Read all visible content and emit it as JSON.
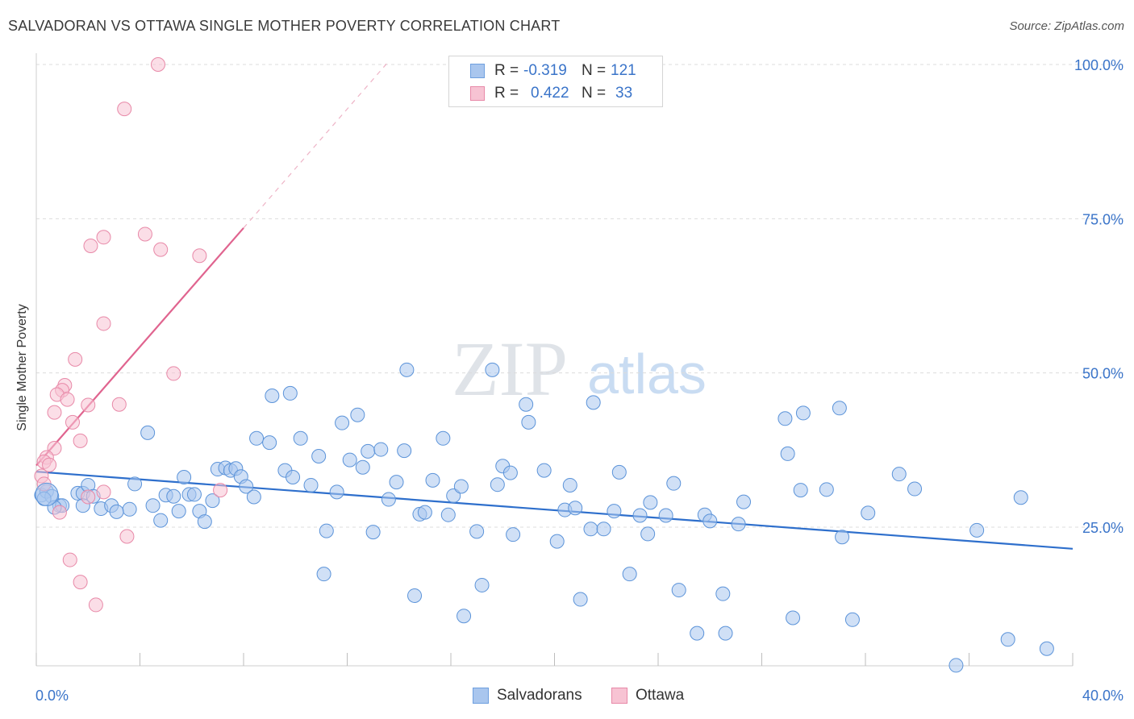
{
  "title": "SALVADORAN VS OTTAWA SINGLE MOTHER POVERTY CORRELATION CHART",
  "source": "Source: ZipAtlas.com",
  "watermark": {
    "zip": "ZIP",
    "atlas": "atlas"
  },
  "legend": {
    "rows": [
      {
        "r_label": "R =",
        "r_value": "-0.319",
        "n_label": "N =",
        "n_value": "121",
        "color": "#a9c6ee",
        "border": "#6e9fdf"
      },
      {
        "r_label": "R =",
        "r_value": "0.422",
        "n_label": "N =",
        "n_value": "33",
        "color": "#f7c3d3",
        "border": "#e889a8"
      }
    ]
  },
  "bottom_legend": [
    {
      "label": "Salvadorans",
      "color": "#a9c6ee",
      "border": "#6e9fdf"
    },
    {
      "label": "Ottawa",
      "color": "#f7c3d3",
      "border": "#e889a8"
    }
  ],
  "chart_data": {
    "type": "scatter",
    "title": "SALVADORAN VS OTTAWA SINGLE MOTHER POVERTY CORRELATION CHART",
    "xlabel": "",
    "ylabel": "Single Mother Poverty",
    "xlim": [
      0,
      40
    ],
    "ylim": [
      0,
      105
    ],
    "x_tick_labels": [
      "0.0%",
      "40.0%"
    ],
    "y_ticks": [
      25,
      50,
      75,
      100
    ],
    "y_tick_labels": [
      "25.0%",
      "50.0%",
      "75.0%",
      "100.0%"
    ],
    "grid": "horizontal dashed",
    "legend_position": "top-center",
    "series": [
      {
        "name": "Salvadorans",
        "color": "#5b93d9",
        "fill": "#a9c6ee",
        "trend": {
          "x": [
            0,
            40
          ],
          "y": [
            34.0,
            21.5
          ],
          "color": "#2e6fcc"
        },
        "points": [
          [
            0.2,
            30.2
          ],
          [
            0.4,
            30.8
          ],
          [
            0.6,
            30.0
          ],
          [
            0.9,
            28.5
          ],
          [
            1.0,
            28.5
          ],
          [
            1.6,
            30.5
          ],
          [
            1.8,
            30.5
          ],
          [
            1.8,
            28.5
          ],
          [
            2.0,
            31.8
          ],
          [
            2.2,
            30.0
          ],
          [
            2.5,
            28.0
          ],
          [
            2.9,
            28.5
          ],
          [
            3.6,
            27.9
          ],
          [
            3.8,
            32.0
          ],
          [
            3.1,
            27.5
          ],
          [
            4.3,
            40.3
          ],
          [
            4.5,
            28.5
          ],
          [
            4.8,
            26.1
          ],
          [
            5.0,
            30.2
          ],
          [
            5.3,
            30.0
          ],
          [
            5.5,
            27.6
          ],
          [
            5.7,
            33.1
          ],
          [
            5.9,
            30.3
          ],
          [
            6.1,
            30.3
          ],
          [
            6.3,
            27.6
          ],
          [
            6.5,
            25.9
          ],
          [
            6.8,
            29.3
          ],
          [
            7.0,
            34.4
          ],
          [
            7.3,
            34.6
          ],
          [
            7.5,
            34.2
          ],
          [
            7.7,
            34.5
          ],
          [
            7.9,
            33.2
          ],
          [
            8.1,
            31.6
          ],
          [
            8.4,
            29.9
          ],
          [
            8.5,
            39.4
          ],
          [
            9.0,
            38.7
          ],
          [
            9.1,
            46.3
          ],
          [
            9.6,
            34.2
          ],
          [
            9.8,
            46.7
          ],
          [
            9.9,
            33.1
          ],
          [
            10.2,
            39.4
          ],
          [
            10.6,
            31.8
          ],
          [
            10.9,
            36.5
          ],
          [
            11.1,
            17.4
          ],
          [
            11.2,
            24.4
          ],
          [
            11.6,
            30.7
          ],
          [
            11.8,
            41.9
          ],
          [
            12.1,
            35.9
          ],
          [
            12.4,
            43.2
          ],
          [
            12.6,
            34.7
          ],
          [
            12.8,
            37.3
          ],
          [
            13.0,
            24.2
          ],
          [
            13.3,
            37.6
          ],
          [
            13.6,
            29.5
          ],
          [
            13.9,
            32.3
          ],
          [
            14.2,
            37.4
          ],
          [
            14.3,
            50.5
          ],
          [
            14.6,
            13.9
          ],
          [
            14.8,
            27.1
          ],
          [
            15.0,
            27.4
          ],
          [
            15.3,
            32.6
          ],
          [
            15.7,
            39.4
          ],
          [
            15.9,
            27.0
          ],
          [
            16.1,
            30.1
          ],
          [
            16.4,
            31.6
          ],
          [
            16.5,
            10.6
          ],
          [
            17.0,
            24.3
          ],
          [
            17.2,
            15.6
          ],
          [
            17.6,
            50.5
          ],
          [
            17.8,
            31.9
          ],
          [
            18.0,
            34.9
          ],
          [
            18.3,
            33.8
          ],
          [
            18.4,
            23.8
          ],
          [
            18.9,
            44.9
          ],
          [
            19.0,
            42.0
          ],
          [
            19.6,
            34.2
          ],
          [
            20.1,
            22.7
          ],
          [
            20.4,
            27.8
          ],
          [
            20.6,
            31.8
          ],
          [
            20.8,
            28.1
          ],
          [
            21.0,
            13.3
          ],
          [
            21.4,
            24.7
          ],
          [
            21.5,
            45.2
          ],
          [
            21.9,
            24.7
          ],
          [
            22.3,
            27.6
          ],
          [
            22.5,
            33.9
          ],
          [
            22.9,
            17.4
          ],
          [
            23.3,
            26.9
          ],
          [
            23.6,
            23.9
          ],
          [
            23.7,
            29.0
          ],
          [
            24.3,
            26.9
          ],
          [
            24.6,
            32.1
          ],
          [
            24.8,
            14.8
          ],
          [
            25.8,
            27.0
          ],
          [
            26.0,
            26.0
          ],
          [
            25.5,
            7.8
          ],
          [
            26.5,
            14.2
          ],
          [
            26.6,
            7.8
          ],
          [
            27.1,
            25.5
          ],
          [
            27.3,
            29.1
          ],
          [
            28.9,
            42.6
          ],
          [
            29.0,
            36.9
          ],
          [
            29.2,
            10.3
          ],
          [
            29.5,
            31.0
          ],
          [
            29.6,
            43.5
          ],
          [
            30.5,
            31.1
          ],
          [
            31.0,
            44.3
          ],
          [
            31.1,
            23.4
          ],
          [
            31.5,
            10.0
          ],
          [
            32.1,
            27.3
          ],
          [
            33.3,
            33.6
          ],
          [
            33.9,
            31.2
          ],
          [
            35.5,
            2.6
          ],
          [
            36.3,
            24.5
          ],
          [
            38.0,
            29.8
          ],
          [
            37.5,
            6.8
          ],
          [
            39.0,
            5.3
          ],
          [
            0.3,
            29.6
          ],
          [
            0.7,
            28.2
          ]
        ]
      },
      {
        "name": "Ottawa",
        "color": "#e889a8",
        "fill": "#f7c3d3",
        "trend": {
          "x": [
            0,
            8.0
          ],
          "y": [
            35.0,
            73.5
          ],
          "color": "#e0648f",
          "dashed_extension_to": [
            13.6,
            100.5
          ]
        },
        "points": [
          [
            4.7,
            100.0
          ],
          [
            3.4,
            92.8
          ],
          [
            4.2,
            72.5
          ],
          [
            2.6,
            72.0
          ],
          [
            2.1,
            70.6
          ],
          [
            4.8,
            70.0
          ],
          [
            6.3,
            69.0
          ],
          [
            2.6,
            58.0
          ],
          [
            1.5,
            52.2
          ],
          [
            5.3,
            49.9
          ],
          [
            1.1,
            48.0
          ],
          [
            1.0,
            47.2
          ],
          [
            0.8,
            46.5
          ],
          [
            1.2,
            45.7
          ],
          [
            2.0,
            44.8
          ],
          [
            3.2,
            44.9
          ],
          [
            0.7,
            43.6
          ],
          [
            1.4,
            42.0
          ],
          [
            1.7,
            39.0
          ],
          [
            0.7,
            37.8
          ],
          [
            0.4,
            36.3
          ],
          [
            0.3,
            35.6
          ],
          [
            0.5,
            35.1
          ],
          [
            0.2,
            33.3
          ],
          [
            0.3,
            32.0
          ],
          [
            7.1,
            31.0
          ],
          [
            2.6,
            30.7
          ],
          [
            2.0,
            29.9
          ],
          [
            0.9,
            27.4
          ],
          [
            3.5,
            23.5
          ],
          [
            1.3,
            19.7
          ],
          [
            1.7,
            16.1
          ],
          [
            2.3,
            12.4
          ]
        ]
      }
    ]
  }
}
